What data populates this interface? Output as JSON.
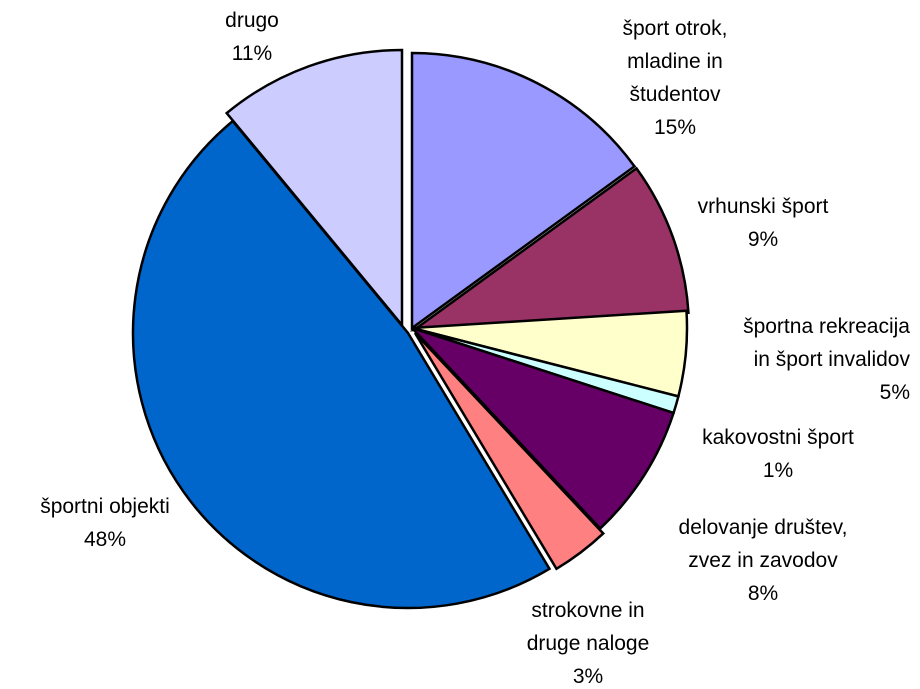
{
  "chart_data": {
    "type": "pie",
    "title": "",
    "slices": [
      {
        "label_lines": [
          "šport otrok,",
          "mladine in",
          "študentov"
        ],
        "pct_label": "15%",
        "value": 15,
        "color": "#9999ff"
      },
      {
        "label_lines": [
          "vrhunski šport"
        ],
        "pct_label": "9%",
        "value": 9,
        "color": "#993366"
      },
      {
        "label_lines": [
          "športna rekreacija",
          "in šport invalidov"
        ],
        "pct_label": "5%",
        "value": 5,
        "color": "#ffffcc"
      },
      {
        "label_lines": [
          "kakovostni šport"
        ],
        "pct_label": "1%",
        "value": 1,
        "color": "#ccffff"
      },
      {
        "label_lines": [
          "delovanje društev,",
          "zvez in zavodov"
        ],
        "pct_label": "8%",
        "value": 8,
        "color": "#660066"
      },
      {
        "label_lines": [
          "strokovne in",
          "druge naloge"
        ],
        "pct_label": "3%",
        "value": 3.4,
        "color": "#ff8080"
      },
      {
        "label_lines": [
          "športni objekti"
        ],
        "pct_label": "48%",
        "value": 47.6,
        "color": "#0066cc"
      },
      {
        "label_lines": [
          "drugo"
        ],
        "pct_label": "11%",
        "value": 11,
        "color": "#ccccff"
      }
    ],
    "start": "12 o'clock",
    "direction": "clockwise",
    "exploded": true,
    "legend": "none"
  }
}
